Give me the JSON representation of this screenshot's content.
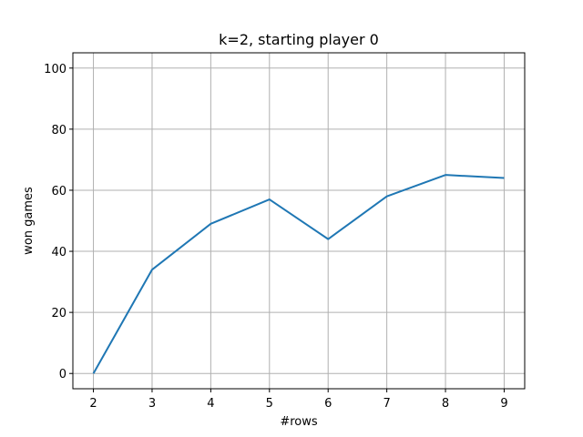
{
  "chart_data": {
    "type": "line",
    "title": "k=2, starting player 0",
    "xlabel": "#rows",
    "ylabel": "won games",
    "x": [
      2,
      3,
      4,
      5,
      6,
      7,
      8,
      9
    ],
    "series": [
      {
        "values": [
          0,
          34,
          49,
          57,
          44,
          58,
          65,
          64
        ],
        "color": "#1f77b4"
      }
    ],
    "xlim": [
      1.65,
      9.35
    ],
    "ylim": [
      -5,
      105
    ],
    "xticks": [
      2,
      3,
      4,
      5,
      6,
      7,
      8,
      9
    ],
    "yticks": [
      0,
      20,
      40,
      60,
      80,
      100
    ],
    "grid": true
  }
}
